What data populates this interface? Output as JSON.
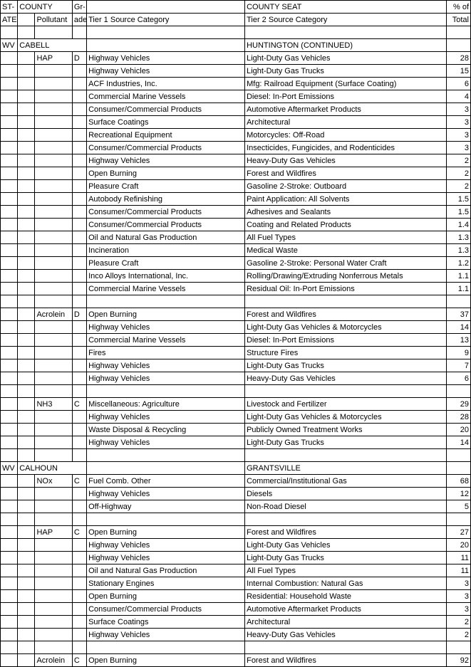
{
  "headers": {
    "r1": {
      "c1": "ST-",
      "c2": "COUNTY",
      "c3": "",
      "c4": "Gr-",
      "c5": "",
      "c6": "COUNTY SEAT",
      "c7": "% of"
    },
    "r2": {
      "c1": "ATE",
      "c2": "",
      "c3": "Pollutant",
      "c4": "ade",
      "c5": "Tier 1 Source Category",
      "c6": "Tier 2 Source Category",
      "c7": "Total"
    }
  },
  "rows": [
    {
      "c1": "",
      "c2": "",
      "c3": "",
      "c4": "",
      "c5": "",
      "c6": "",
      "c7": ""
    },
    {
      "c1": "WV",
      "c2": "CABELL",
      "c3": "",
      "c4": "",
      "c5": "",
      "c6": "HUNTINGTON (CONTINUED)",
      "c7": ""
    },
    {
      "c1": "",
      "c2": "",
      "c3": "HAP",
      "c4": "D",
      "c5": "Highway Vehicles",
      "c6": "Light-Duty Gas Vehicles",
      "c7": "28"
    },
    {
      "c1": "",
      "c2": "",
      "c3": "",
      "c4": "",
      "c5": "Highway Vehicles",
      "c6": "Light-Duty Gas Trucks",
      "c7": "15"
    },
    {
      "c1": "",
      "c2": "",
      "c3": "",
      "c4": "",
      "c5": "ACF Industries, Inc.",
      "c6": "Mfg: Railroad Equipment (Surface Coating)",
      "c7": "6"
    },
    {
      "c1": "",
      "c2": "",
      "c3": "",
      "c4": "",
      "c5": "Commercial Marine Vessels",
      "c6": "Diesel: In-Port Emissions",
      "c7": "4"
    },
    {
      "c1": "",
      "c2": "",
      "c3": "",
      "c4": "",
      "c5": "Consumer/Commercial Products",
      "c6": "Automotive Aftermarket Products",
      "c7": "3"
    },
    {
      "c1": "",
      "c2": "",
      "c3": "",
      "c4": "",
      "c5": "Surface Coatings",
      "c6": "Architectural",
      "c7": "3"
    },
    {
      "c1": "",
      "c2": "",
      "c3": "",
      "c4": "",
      "c5": "Recreational Equipment",
      "c6": "Motorcycles: Off-Road",
      "c7": "3"
    },
    {
      "c1": "",
      "c2": "",
      "c3": "",
      "c4": "",
      "c5": "Consumer/Commercial Products",
      "c6": "Insecticides, Fungicides, and Rodenticides",
      "c7": "3"
    },
    {
      "c1": "",
      "c2": "",
      "c3": "",
      "c4": "",
      "c5": "Highway Vehicles",
      "c6": "Heavy-Duty Gas Vehicles",
      "c7": "2"
    },
    {
      "c1": "",
      "c2": "",
      "c3": "",
      "c4": "",
      "c5": "Open Burning",
      "c6": "Forest and Wildfires",
      "c7": "2"
    },
    {
      "c1": "",
      "c2": "",
      "c3": "",
      "c4": "",
      "c5": "Pleasure Craft",
      "c6": "Gasoline 2-Stroke: Outboard",
      "c7": "2"
    },
    {
      "c1": "",
      "c2": "",
      "c3": "",
      "c4": "",
      "c5": "Autobody Refinishing",
      "c6": "Paint Application: All Solvents",
      "c7": "1.5"
    },
    {
      "c1": "",
      "c2": "",
      "c3": "",
      "c4": "",
      "c5": "Consumer/Commercial Products",
      "c6": "Adhesives and Sealants",
      "c7": "1.5"
    },
    {
      "c1": "",
      "c2": "",
      "c3": "",
      "c4": "",
      "c5": "Consumer/Commercial Products",
      "c6": "Coating and Related Products",
      "c7": "1.4"
    },
    {
      "c1": "",
      "c2": "",
      "c3": "",
      "c4": "",
      "c5": "Oil and Natural Gas Production",
      "c6": "All Fuel Types",
      "c7": "1.3"
    },
    {
      "c1": "",
      "c2": "",
      "c3": "",
      "c4": "",
      "c5": "Incineration",
      "c6": "Medical Waste",
      "c7": "1.3"
    },
    {
      "c1": "",
      "c2": "",
      "c3": "",
      "c4": "",
      "c5": "Pleasure Craft",
      "c6": "Gasoline 2-Stroke: Personal Water Craft",
      "c7": "1.2"
    },
    {
      "c1": "",
      "c2": "",
      "c3": "",
      "c4": "",
      "c5": "Inco Alloys International, Inc.",
      "c6": "Rolling/Drawing/Extruding Nonferrous Metals",
      "c7": "1.1"
    },
    {
      "c1": "",
      "c2": "",
      "c3": "",
      "c4": "",
      "c5": "Commercial Marine Vessels",
      "c6": "Residual Oil: In-Port Emissions",
      "c7": "1.1"
    },
    {
      "c1": "",
      "c2": "",
      "c3": "",
      "c4": "",
      "c5": "",
      "c6": "",
      "c7": ""
    },
    {
      "c1": "",
      "c2": "",
      "c3": "Acrolein",
      "c4": "D",
      "c5": "Open Burning",
      "c6": "Forest and Wildfires",
      "c7": "37"
    },
    {
      "c1": "",
      "c2": "",
      "c3": "",
      "c4": "",
      "c5": "Highway Vehicles",
      "c6": "Light-Duty Gas Vehicles & Motorcycles",
      "c7": "14"
    },
    {
      "c1": "",
      "c2": "",
      "c3": "",
      "c4": "",
      "c5": "Commercial Marine Vessels",
      "c6": "Diesel: In-Port Emissions",
      "c7": "13"
    },
    {
      "c1": "",
      "c2": "",
      "c3": "",
      "c4": "",
      "c5": "Fires",
      "c6": "Structure Fires",
      "c7": "9"
    },
    {
      "c1": "",
      "c2": "",
      "c3": "",
      "c4": "",
      "c5": "Highway Vehicles",
      "c6": "Light-Duty Gas Trucks",
      "c7": "7"
    },
    {
      "c1": "",
      "c2": "",
      "c3": "",
      "c4": "",
      "c5": "Highway Vehicles",
      "c6": "Heavy-Duty Gas Vehicles",
      "c7": "6"
    },
    {
      "c1": "",
      "c2": "",
      "c3": "",
      "c4": "",
      "c5": "",
      "c6": "",
      "c7": ""
    },
    {
      "c1": "",
      "c2": "",
      "c3": "NH3",
      "c4": "C",
      "c5": "Miscellaneous: Agriculture",
      "c6": "Livestock and Fertilizer",
      "c7": "29"
    },
    {
      "c1": "",
      "c2": "",
      "c3": "",
      "c4": "",
      "c5": "Highway Vehicles",
      "c6": "Light-Duty Gas Vehicles & Motorcycles",
      "c7": "28"
    },
    {
      "c1": "",
      "c2": "",
      "c3": "",
      "c4": "",
      "c5": "Waste Disposal & Recycling",
      "c6": "Publicly Owned Treatment Works",
      "c7": "20"
    },
    {
      "c1": "",
      "c2": "",
      "c3": "",
      "c4": "",
      "c5": "Highway Vehicles",
      "c6": "Light-Duty Gas Trucks",
      "c7": "14"
    },
    {
      "c1": "",
      "c2": "",
      "c3": "",
      "c4": "",
      "c5": "",
      "c6": "",
      "c7": ""
    },
    {
      "c1": "WV",
      "c2": "CALHOUN",
      "c3": "",
      "c4": "",
      "c5": "",
      "c6": "GRANTSVILLE",
      "c7": ""
    },
    {
      "c1": "",
      "c2": "",
      "c3": "NOx",
      "c4": "C",
      "c5": "Fuel Comb. Other",
      "c6": "Commercial/Institutional Gas",
      "c7": "68"
    },
    {
      "c1": "",
      "c2": "",
      "c3": "",
      "c4": "",
      "c5": "Highway Vehicles",
      "c6": "Diesels",
      "c7": "12"
    },
    {
      "c1": "",
      "c2": "",
      "c3": "",
      "c4": "",
      "c5": "Off-Highway",
      "c6": "Non-Road Diesel",
      "c7": "5"
    },
    {
      "c1": "",
      "c2": "",
      "c3": "",
      "c4": "",
      "c5": "",
      "c6": "",
      "c7": ""
    },
    {
      "c1": "",
      "c2": "",
      "c3": "HAP",
      "c4": "C",
      "c5": "Open Burning",
      "c6": "Forest and Wildfires",
      "c7": "27"
    },
    {
      "c1": "",
      "c2": "",
      "c3": "",
      "c4": "",
      "c5": "Highway Vehicles",
      "c6": "Light-Duty Gas Vehicles",
      "c7": "20"
    },
    {
      "c1": "",
      "c2": "",
      "c3": "",
      "c4": "",
      "c5": "Highway Vehicles",
      "c6": "Light-Duty Gas Trucks",
      "c7": "11"
    },
    {
      "c1": "",
      "c2": "",
      "c3": "",
      "c4": "",
      "c5": "Oil and Natural Gas Production",
      "c6": "All Fuel Types",
      "c7": "11"
    },
    {
      "c1": "",
      "c2": "",
      "c3": "",
      "c4": "",
      "c5": "Stationary Engines",
      "c6": "Internal Combustion: Natural Gas",
      "c7": "3"
    },
    {
      "c1": "",
      "c2": "",
      "c3": "",
      "c4": "",
      "c5": "Open Burning",
      "c6": "Residential: Household Waste",
      "c7": "3"
    },
    {
      "c1": "",
      "c2": "",
      "c3": "",
      "c4": "",
      "c5": "Consumer/Commercial Products",
      "c6": "Automotive Aftermarket Products",
      "c7": "3"
    },
    {
      "c1": "",
      "c2": "",
      "c3": "",
      "c4": "",
      "c5": "Surface Coatings",
      "c6": "Architectural",
      "c7": "2"
    },
    {
      "c1": "",
      "c2": "",
      "c3": "",
      "c4": "",
      "c5": "Highway Vehicles",
      "c6": "Heavy-Duty Gas Vehicles",
      "c7": "2"
    },
    {
      "c1": "",
      "c2": "",
      "c3": "",
      "c4": "",
      "c5": "",
      "c6": "",
      "c7": ""
    },
    {
      "c1": "",
      "c2": "",
      "c3": "Acrolein",
      "c4": "C",
      "c5": "Open Burning",
      "c6": "Forest and Wildfires",
      "c7": "92"
    }
  ]
}
